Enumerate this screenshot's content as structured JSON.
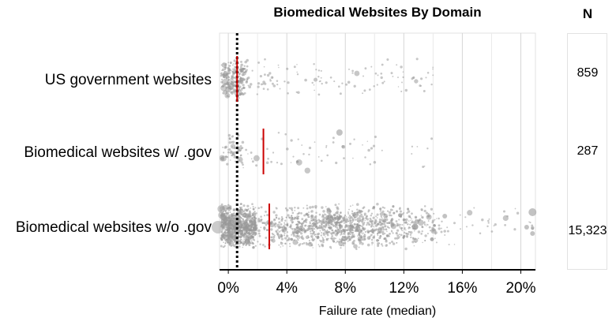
{
  "chart_data": {
    "type": "scatter",
    "title": "Biomedical Websites By Domain",
    "xlabel": "Failure rate (median)",
    "ylabel": "",
    "xlim": [
      -0.6,
      21
    ],
    "x_ticks": [
      0,
      4,
      8,
      12,
      16,
      20
    ],
    "x_tick_labels": [
      "0%",
      "4%",
      "8%",
      "12%",
      "16%",
      "20%"
    ],
    "grid": true,
    "reference_line": {
      "x": 0.6,
      "style": "dotted",
      "color": "#000000"
    },
    "categories": [
      "US government websites",
      "Biomedical websites w/ .gov",
      "Biomedical websites w/o .gov"
    ],
    "medians": [
      0.6,
      2.4,
      2.8
    ],
    "median_color": "#cc0000",
    "point_color": "#999999",
    "n_header": "N",
    "n_values": [
      "859",
      "287",
      "15,323"
    ]
  }
}
